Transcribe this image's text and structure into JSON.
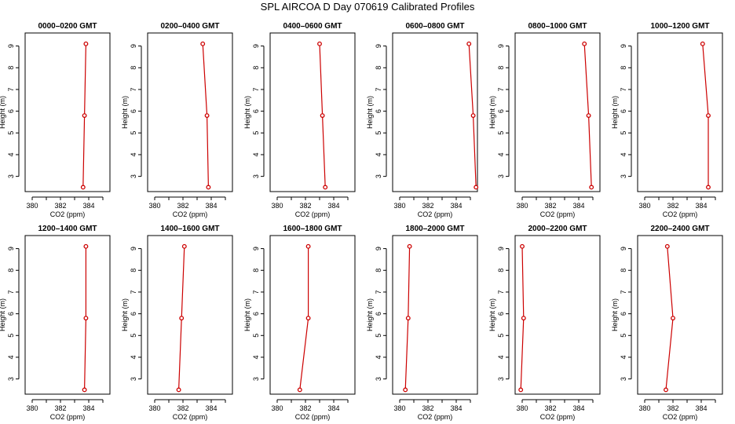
{
  "title": "SPL AIRCOA D  Day 070619  Calibrated Profiles",
  "chart_data": [
    {
      "type": "line",
      "title": "0000–0200 GMT",
      "xlabel": "CO2 (ppm)",
      "ylabel": "Height (m)",
      "xlim": [
        379.5,
        385.5
      ],
      "ylim": [
        2.3,
        9.6
      ],
      "xticks": [
        380,
        382,
        384
      ],
      "yticks": [
        3,
        4,
        5,
        6,
        7,
        8,
        9
      ],
      "series": [
        {
          "x": [
            383.6,
            383.7,
            383.8
          ],
          "y": [
            2.5,
            5.8,
            9.1
          ]
        }
      ]
    },
    {
      "type": "line",
      "title": "0200–0400 GMT",
      "xlabel": "CO2 (ppm)",
      "ylabel": "Height (m)",
      "xlim": [
        379.5,
        385.5
      ],
      "ylim": [
        2.3,
        9.6
      ],
      "xticks": [
        380,
        382,
        384
      ],
      "yticks": [
        3,
        4,
        5,
        6,
        7,
        8,
        9
      ],
      "series": [
        {
          "x": [
            383.8,
            383.7,
            383.4
          ],
          "y": [
            2.5,
            5.8,
            9.1
          ]
        }
      ]
    },
    {
      "type": "line",
      "title": "0400–0600 GMT",
      "xlabel": "CO2 (ppm)",
      "ylabel": "Height (m)",
      "xlim": [
        379.5,
        385.5
      ],
      "ylim": [
        2.3,
        9.6
      ],
      "xticks": [
        380,
        382,
        384
      ],
      "yticks": [
        3,
        4,
        5,
        6,
        7,
        8,
        9
      ],
      "series": [
        {
          "x": [
            383.4,
            383.2,
            383.0
          ],
          "y": [
            2.5,
            5.8,
            9.1
          ]
        }
      ]
    },
    {
      "type": "line",
      "title": "0600–0800 GMT",
      "xlabel": "CO2 (ppm)",
      "ylabel": "Height (m)",
      "xlim": [
        379.5,
        385.5
      ],
      "ylim": [
        2.3,
        9.6
      ],
      "xticks": [
        380,
        382,
        384
      ],
      "yticks": [
        3,
        4,
        5,
        6,
        7,
        8,
        9
      ],
      "series": [
        {
          "x": [
            385.4,
            385.2,
            384.9
          ],
          "y": [
            2.5,
            5.8,
            9.1
          ]
        }
      ]
    },
    {
      "type": "line",
      "title": "0800–1000 GMT",
      "xlabel": "CO2 (ppm)",
      "ylabel": "Height (m)",
      "xlim": [
        379.5,
        385.5
      ],
      "ylim": [
        2.3,
        9.6
      ],
      "xticks": [
        380,
        382,
        384
      ],
      "yticks": [
        3,
        4,
        5,
        6,
        7,
        8,
        9
      ],
      "series": [
        {
          "x": [
            384.9,
            384.7,
            384.4
          ],
          "y": [
            2.5,
            5.8,
            9.1
          ]
        }
      ]
    },
    {
      "type": "line",
      "title": "1000–1200 GMT",
      "xlabel": "CO2 (ppm)",
      "ylabel": "Height (m)",
      "xlim": [
        379.5,
        385.5
      ],
      "ylim": [
        2.3,
        9.6
      ],
      "xticks": [
        380,
        382,
        384
      ],
      "yticks": [
        3,
        4,
        5,
        6,
        7,
        8,
        9
      ],
      "series": [
        {
          "x": [
            384.5,
            384.5,
            384.1
          ],
          "y": [
            2.5,
            5.8,
            9.1
          ]
        }
      ]
    },
    {
      "type": "line",
      "title": "1200–1400 GMT",
      "xlabel": "CO2 (ppm)",
      "ylabel": "Height (m)",
      "xlim": [
        379.5,
        385.5
      ],
      "ylim": [
        2.3,
        9.6
      ],
      "xticks": [
        380,
        382,
        384
      ],
      "yticks": [
        3,
        4,
        5,
        6,
        7,
        8,
        9
      ],
      "series": [
        {
          "x": [
            383.7,
            383.8,
            383.8
          ],
          "y": [
            2.5,
            5.8,
            9.1
          ]
        }
      ]
    },
    {
      "type": "line",
      "title": "1400–1600 GMT",
      "xlabel": "CO2 (ppm)",
      "ylabel": "Height (m)",
      "xlim": [
        379.5,
        385.5
      ],
      "ylim": [
        2.3,
        9.6
      ],
      "xticks": [
        380,
        382,
        384
      ],
      "yticks": [
        3,
        4,
        5,
        6,
        7,
        8,
        9
      ],
      "series": [
        {
          "x": [
            381.7,
            381.9,
            382.1
          ],
          "y": [
            2.5,
            5.8,
            9.1
          ]
        }
      ]
    },
    {
      "type": "line",
      "title": "1600–1800 GMT",
      "xlabel": "CO2 (ppm)",
      "ylabel": "Height (m)",
      "xlim": [
        379.5,
        385.5
      ],
      "ylim": [
        2.3,
        9.6
      ],
      "xticks": [
        380,
        382,
        384
      ],
      "yticks": [
        3,
        4,
        5,
        6,
        7,
        8,
        9
      ],
      "series": [
        {
          "x": [
            381.6,
            382.2,
            382.2
          ],
          "y": [
            2.5,
            5.8,
            9.1
          ]
        }
      ]
    },
    {
      "type": "line",
      "title": "1800–2000 GMT",
      "xlabel": "CO2 (ppm)",
      "ylabel": "Height (m)",
      "xlim": [
        379.5,
        385.5
      ],
      "ylim": [
        2.3,
        9.6
      ],
      "xticks": [
        380,
        382,
        384
      ],
      "yticks": [
        3,
        4,
        5,
        6,
        7,
        8,
        9
      ],
      "series": [
        {
          "x": [
            380.4,
            380.6,
            380.7
          ],
          "y": [
            2.5,
            5.8,
            9.1
          ]
        }
      ]
    },
    {
      "type": "line",
      "title": "2000–2200 GMT",
      "xlabel": "CO2 (ppm)",
      "ylabel": "Height (m)",
      "xlim": [
        379.5,
        385.5
      ],
      "ylim": [
        2.3,
        9.6
      ],
      "xticks": [
        380,
        382,
        384
      ],
      "yticks": [
        3,
        4,
        5,
        6,
        7,
        8,
        9
      ],
      "series": [
        {
          "x": [
            379.9,
            380.1,
            380.0
          ],
          "y": [
            2.5,
            5.8,
            9.1
          ]
        }
      ]
    },
    {
      "type": "line",
      "title": "2200–2400 GMT",
      "xlabel": "CO2 (ppm)",
      "ylabel": "Height (m)",
      "xlim": [
        379.5,
        385.5
      ],
      "ylim": [
        2.3,
        9.6
      ],
      "xticks": [
        380,
        382,
        384
      ],
      "yticks": [
        3,
        4,
        5,
        6,
        7,
        8,
        9
      ],
      "series": [
        {
          "x": [
            381.5,
            382.0,
            381.6
          ],
          "y": [
            2.5,
            5.8,
            9.1
          ]
        }
      ]
    }
  ],
  "colors": {
    "line": "#cc0000",
    "axis": "#000000",
    "background": "#ffffff"
  }
}
